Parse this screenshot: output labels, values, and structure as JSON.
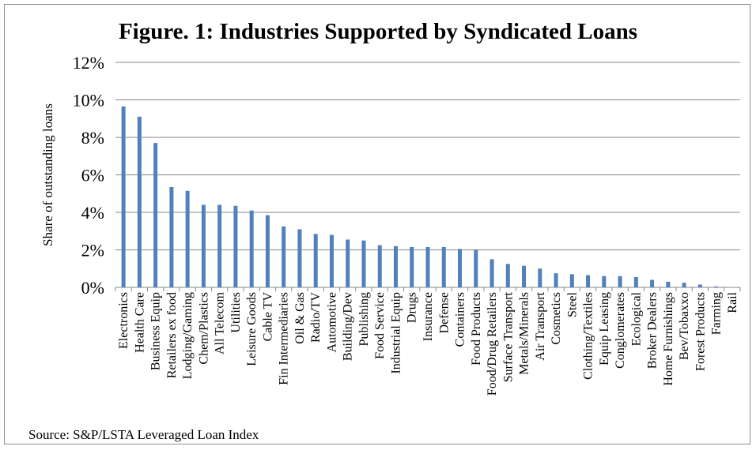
{
  "chart_data": {
    "type": "bar",
    "title": "Figure. 1: Industries Supported by Syndicated Loans",
    "ylabel": "Share of outstanding loans",
    "xlabel": "",
    "ylim": [
      0,
      12
    ],
    "yticks": [
      "0%",
      "2%",
      "4%",
      "6%",
      "8%",
      "10%",
      "12%"
    ],
    "grid": true,
    "bar_color": "#4f81bd",
    "categories": [
      "Electronics",
      "Health Care",
      "Business Equip",
      "Retailers ex food",
      "Lodging/Gaming",
      "Chem/Plastics",
      "All Telecom",
      "Utilities",
      "Leisure Goods",
      "Cable TV",
      "Fin Intermediaries",
      "Oil & Gas",
      "Radio/TV",
      "Automotive",
      "Building/Dev",
      "Publishing",
      "Food Service",
      "Industrial Equip",
      "Drugs",
      "Insurance",
      "Defense",
      "Containers",
      "Food Products",
      "Food/Drug Retailers",
      "Surface Transport",
      "Metals/Minerals",
      "Air Transport",
      "Cosmetics",
      "Steel",
      "Clothing/Textiles",
      "Equip Leasing",
      "Conglomerates",
      "Ecological",
      "Broker Dealers",
      "Home Furnishings",
      "Bev/Tobaxxo",
      "Forest Products",
      "Farming",
      "Rail"
    ],
    "values": [
      9.65,
      9.1,
      7.7,
      5.35,
      5.15,
      4.4,
      4.4,
      4.35,
      4.1,
      3.85,
      3.25,
      3.1,
      2.85,
      2.8,
      2.55,
      2.5,
      2.25,
      2.2,
      2.15,
      2.15,
      2.15,
      2.05,
      2.0,
      1.5,
      1.25,
      1.15,
      1.0,
      0.75,
      0.7,
      0.65,
      0.6,
      0.6,
      0.55,
      0.4,
      0.3,
      0.25,
      0.15,
      0.05,
      0.0
    ]
  },
  "source": "Source: S&P/LSTA Leveraged Loan Index"
}
